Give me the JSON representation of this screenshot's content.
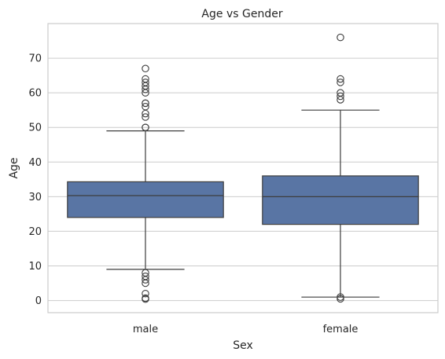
{
  "chart_data": {
    "type": "box",
    "title": "Age vs Gender",
    "xlabel": "Sex",
    "ylabel": "Age",
    "ylim": [
      -3.5,
      80
    ],
    "yticks": [
      0,
      10,
      20,
      30,
      40,
      50,
      60,
      70
    ],
    "grid": "horizontal",
    "box_color": "#5975a4",
    "line_color": "#3d3d3d",
    "categories": [
      "male",
      "female"
    ],
    "boxes": [
      {
        "category": "male",
        "whisker_low": 9,
        "q1": 24,
        "median": 30.3,
        "q3": 34.3,
        "whisker_high": 49,
        "fliers": [
          0.4,
          0.7,
          2,
          5,
          6,
          7,
          8,
          50,
          50,
          53,
          54,
          56,
          57,
          57,
          60,
          61,
          62,
          63,
          64,
          67
        ]
      },
      {
        "category": "female",
        "whisker_low": 1,
        "q1": 22,
        "median": 30,
        "q3": 36,
        "whisker_high": 55,
        "fliers": [
          0.5,
          1,
          58,
          59,
          60,
          63,
          64,
          76
        ]
      }
    ]
  }
}
